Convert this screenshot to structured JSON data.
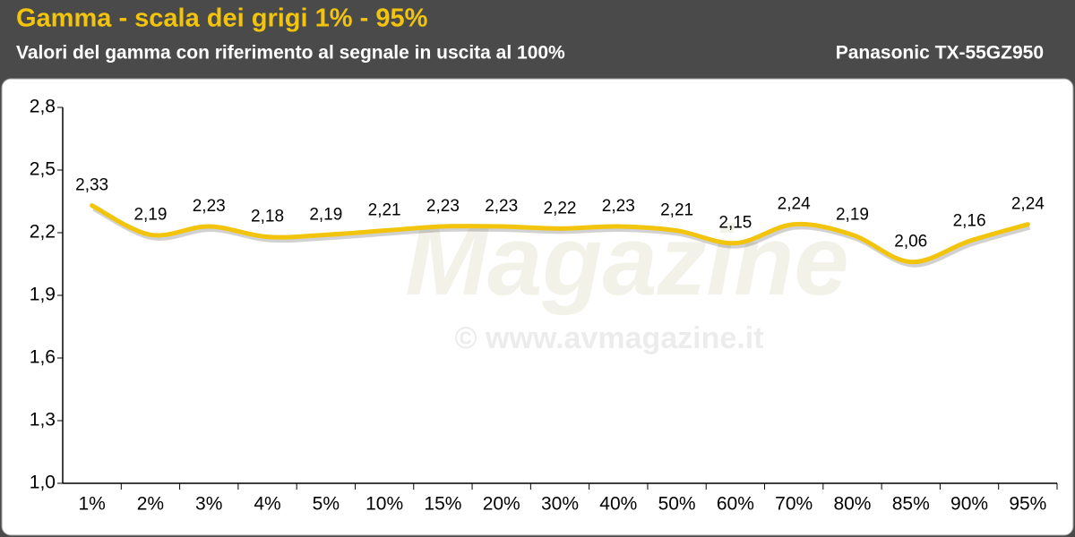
{
  "chart_data": {
    "type": "line",
    "title": "Gamma - scala dei grigi 1% - 95%",
    "subtitle": "Valori del gamma con riferimento al segnale in uscita al 100%",
    "device": "Panasonic TX-55GZ950",
    "watermark": [
      "Magazine",
      "© www.avmagazine.it"
    ],
    "categories": [
      "1%",
      "2%",
      "3%",
      "4%",
      "5%",
      "10%",
      "15%",
      "20%",
      "30%",
      "40%",
      "50%",
      "60%",
      "70%",
      "80%",
      "85%",
      "90%",
      "95%"
    ],
    "series": [
      {
        "name": "Gamma",
        "color": "#f2c40c",
        "values": [
          2.33,
          2.19,
          2.23,
          2.18,
          2.19,
          2.21,
          2.23,
          2.23,
          2.22,
          2.23,
          2.21,
          2.15,
          2.24,
          2.19,
          2.06,
          2.16,
          2.24
        ],
        "value_labels": [
          "2,33",
          "2,19",
          "2,23",
          "2,18",
          "2,19",
          "2,21",
          "2,23",
          "2,23",
          "2,22",
          "2,23",
          "2,21",
          "2,15",
          "2,24",
          "2,19",
          "2,06",
          "2,16",
          "2,24"
        ]
      }
    ],
    "ylim": [
      1.0,
      2.8
    ],
    "yticks": [
      {
        "value": 1.0,
        "label": "1,0"
      },
      {
        "value": 1.3,
        "label": "1,3"
      },
      {
        "value": 1.6,
        "label": "1,6"
      },
      {
        "value": 1.9,
        "label": "1,9"
      },
      {
        "value": 2.2,
        "label": "2,2"
      },
      {
        "value": 2.5,
        "label": "2,5"
      },
      {
        "value": 2.8,
        "label": "2,8"
      }
    ],
    "grid": false
  }
}
